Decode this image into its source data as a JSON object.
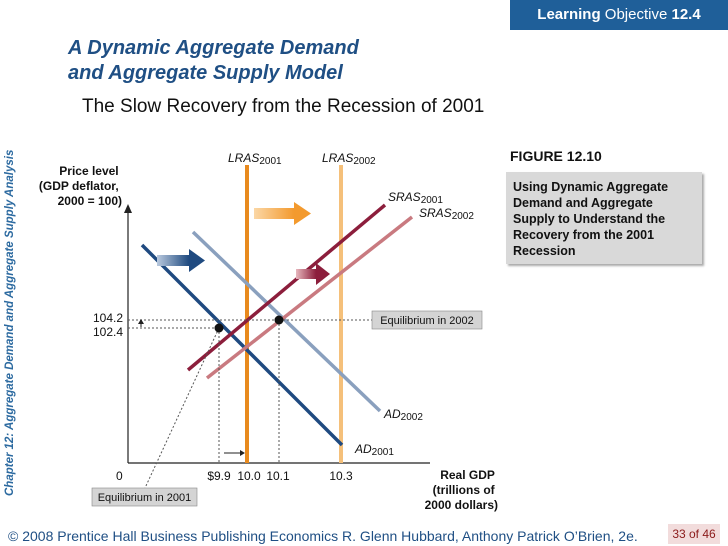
{
  "badge": {
    "learning": "Learning",
    "objective": "Objective",
    "number": "12.4"
  },
  "title": {
    "line1": "A Dynamic Aggregate Demand",
    "line2": "and Aggregate Supply Model"
  },
  "subtitle": "The Slow Recovery from the Recession of 2001",
  "vertical_label": "Chapter 12:  Aggregate Demand and Aggregate Supply Analysis",
  "figure": {
    "label": "FIGURE 12.10",
    "caption": "Using Dynamic Aggregate Demand and Aggregate Supply to Understand  the Recovery from the 2001 Recession"
  },
  "chart_data": {
    "type": "diagram",
    "y_axis": {
      "line1": "Price level",
      "line2": "(GDP deflator,",
      "line3": "2000 = 100)"
    },
    "x_axis": {
      "line1": "Real GDP",
      "line2": "(trillions of",
      "line3": "2000 dollars)"
    },
    "origin": "0",
    "y_ticks": [
      "104.2",
      "102.4"
    ],
    "x_ticks": [
      "$9.9",
      "10.0",
      "10.1",
      "10.3"
    ],
    "curves": {
      "lras2001": {
        "name": "LRAS",
        "year": "2001",
        "x": 10.0,
        "color": "#e88a1e"
      },
      "lras2002": {
        "name": "LRAS",
        "year": "2002",
        "x": 10.3,
        "color": "#f5c07a"
      },
      "sras2001": {
        "name": "SRAS",
        "year": "2001",
        "color": "#8c1e3c"
      },
      "sras2002": {
        "name": "SRAS",
        "year": "2002",
        "color": "#c97a80"
      },
      "ad2001": {
        "name": "AD",
        "year": "2001",
        "color": "#1f4a80"
      },
      "ad2002": {
        "name": "AD",
        "year": "2002",
        "color": "#8aa0be"
      }
    },
    "equilibria": [
      {
        "label": "Equilibrium in 2001",
        "real_gdp": 9.9,
        "price_level": 102.4
      },
      {
        "label": "Equilibrium in 2002",
        "real_gdp": 10.1,
        "price_level": 104.2
      }
    ]
  },
  "footer": "© 2008 Prentice Hall Business Publishing   Economics  R. Glenn Hubbard, Anthony Patrick O’Brien, 2e.",
  "page": "33 of 46"
}
